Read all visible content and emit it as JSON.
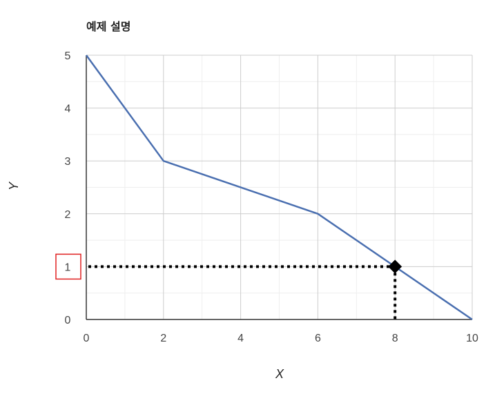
{
  "chart_data": {
    "type": "line",
    "title": "예제 설명",
    "xlabel": "X",
    "ylabel": "Y",
    "xlim": [
      0,
      10
    ],
    "ylim": [
      0,
      5
    ],
    "x_ticks": [
      0,
      2,
      4,
      6,
      8,
      10
    ],
    "y_ticks": [
      0,
      1,
      2,
      3,
      4,
      5
    ],
    "grid": true,
    "minor_grid": true,
    "series": [
      {
        "color": "#4a6fb0",
        "points": [
          [
            0,
            5
          ],
          [
            2,
            3
          ],
          [
            6,
            2
          ],
          [
            10,
            0
          ]
        ]
      }
    ],
    "highlight_point": {
      "x": 8,
      "y": 1,
      "marker": "diamond",
      "color": "#000000"
    },
    "guide_lines": {
      "style": "dotted",
      "color": "#000000"
    },
    "highlighted_tick": {
      "axis": "y",
      "value": 1,
      "box_color": "#e02020"
    }
  }
}
